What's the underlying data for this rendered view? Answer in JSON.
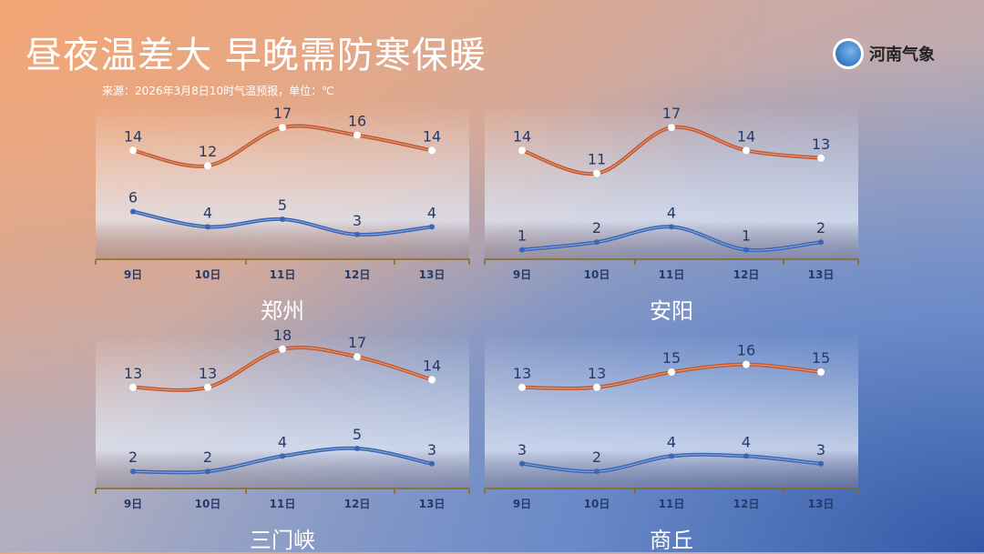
{
  "title": "昼夜温差大 早晚需防寒保暖",
  "source": "来源：2026年3月8日10时气温预报，单位：℃",
  "logo": {
    "text": "河南气象"
  },
  "colors": {
    "high": "#c4582c",
    "low": "#3a66b4",
    "label": "#243a6a",
    "axis": "#8a6a1a"
  },
  "chart_data": [
    {
      "type": "line",
      "title": "郑州",
      "categories": [
        "9日",
        "10日",
        "11日",
        "12日",
        "13日"
      ],
      "series": [
        {
          "values": [
            14,
            12,
            17,
            16,
            14
          ]
        },
        {
          "values": [
            6,
            4,
            5,
            3,
            4
          ]
        }
      ]
    },
    {
      "type": "line",
      "title": "安阳",
      "categories": [
        "9日",
        "10日",
        "11日",
        "12日",
        "13日"
      ],
      "series": [
        {
          "values": [
            14,
            11,
            17,
            14,
            13
          ]
        },
        {
          "values": [
            1,
            2,
            4,
            1,
            2
          ]
        }
      ]
    },
    {
      "type": "line",
      "title": "三门峡",
      "categories": [
        "9日",
        "10日",
        "11日",
        "12日",
        "13日"
      ],
      "series": [
        {
          "values": [
            13,
            13,
            18,
            17,
            14
          ]
        },
        {
          "values": [
            2,
            2,
            4,
            5,
            3
          ]
        }
      ]
    },
    {
      "type": "line",
      "title": "商丘",
      "categories": [
        "9日",
        "10日",
        "11日",
        "12日",
        "13日"
      ],
      "series": [
        {
          "values": [
            13,
            13,
            15,
            16,
            15
          ]
        },
        {
          "values": [
            3,
            2,
            4,
            4,
            3
          ]
        }
      ]
    }
  ]
}
